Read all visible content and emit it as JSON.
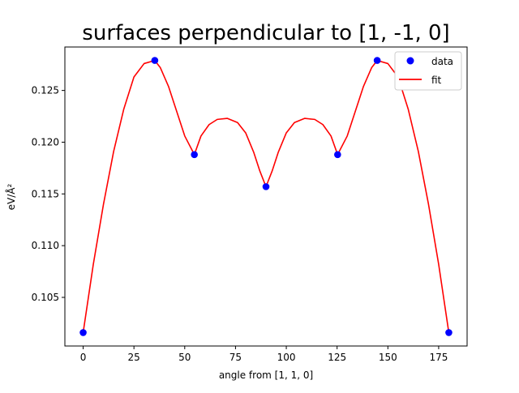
{
  "chart_data": {
    "type": "scatter",
    "title": "surfaces perpendicular to [1, -1, 0]",
    "xlabel": "angle from [1, 1, 0]",
    "ylabel": "eV/Å²",
    "xlim": [
      -9,
      189
    ],
    "ylim": [
      0.1003,
      0.1292
    ],
    "xticks": [
      0,
      25,
      50,
      75,
      100,
      125,
      150,
      175
    ],
    "yticks": [
      0.105,
      0.11,
      0.115,
      0.12,
      0.125
    ],
    "ytick_labels": [
      "0.105",
      "0.110",
      "0.115",
      "0.120",
      "0.125"
    ],
    "legend_placement": "upper-right",
    "grid": false,
    "series": [
      {
        "name": "data",
        "kind": "scatter",
        "color": "#0000ff",
        "x": [
          0,
          35.26,
          54.74,
          90,
          125.26,
          144.74,
          180
        ],
        "y": [
          0.1016,
          0.1279,
          0.1188,
          0.1157,
          0.1188,
          0.1279,
          0.1016
        ]
      },
      {
        "name": "fit",
        "kind": "line",
        "color": "#ff0000",
        "x": [
          0,
          5,
          10,
          15,
          20,
          25,
          30,
          35.26,
          38,
          42,
          46,
          50,
          54.74,
          58,
          62,
          66,
          71,
          76,
          80,
          84,
          87,
          90,
          93,
          96,
          100,
          104,
          109,
          114,
          118,
          122,
          125.26,
          130,
          134,
          138,
          142,
          144.74,
          150,
          155,
          160,
          165,
          170,
          175,
          180
        ],
        "y": [
          0.1016,
          0.1082,
          0.114,
          0.1191,
          0.1232,
          0.1263,
          0.1276,
          0.1279,
          0.1272,
          0.1254,
          0.123,
          0.1206,
          0.1188,
          0.1206,
          0.1217,
          0.1222,
          0.1223,
          0.1219,
          0.1209,
          0.119,
          0.1172,
          0.1157,
          0.1172,
          0.119,
          0.1209,
          0.1219,
          0.1223,
          0.1222,
          0.1217,
          0.1206,
          0.1188,
          0.1206,
          0.123,
          0.1254,
          0.1272,
          0.1279,
          0.1276,
          0.1263,
          0.1232,
          0.1191,
          0.114,
          0.1082,
          0.1016
        ]
      }
    ]
  }
}
